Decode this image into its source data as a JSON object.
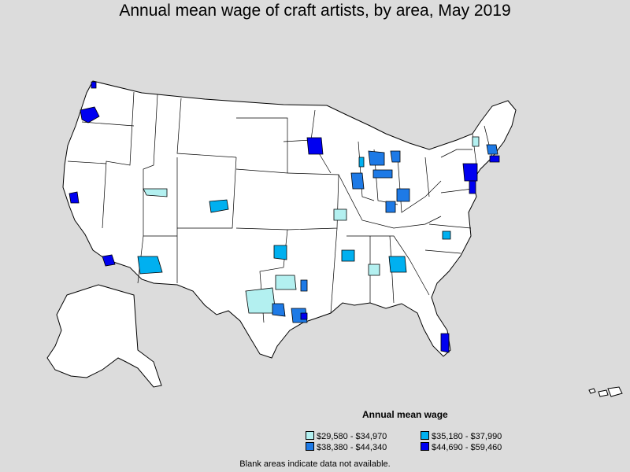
{
  "title": "Annual mean wage of craft artists, by area, May 2019",
  "legend": {
    "title": "Annual mean wage",
    "items": [
      {
        "label": "$29,580 - $34,970",
        "color": "#b3f0f0"
      },
      {
        "label": "$35,180 - $37,990",
        "color": "#00b0f0"
      },
      {
        "label": "$38,380 - $44,340",
        "color": "#1e7ae6"
      },
      {
        "label": "$44,690 - $59,460",
        "color": "#0000f0"
      }
    ]
  },
  "note": "Blank areas indicate data not available.",
  "colors": {
    "background": "#dcdcdc",
    "land": "#ffffff",
    "border": "#000000"
  }
}
